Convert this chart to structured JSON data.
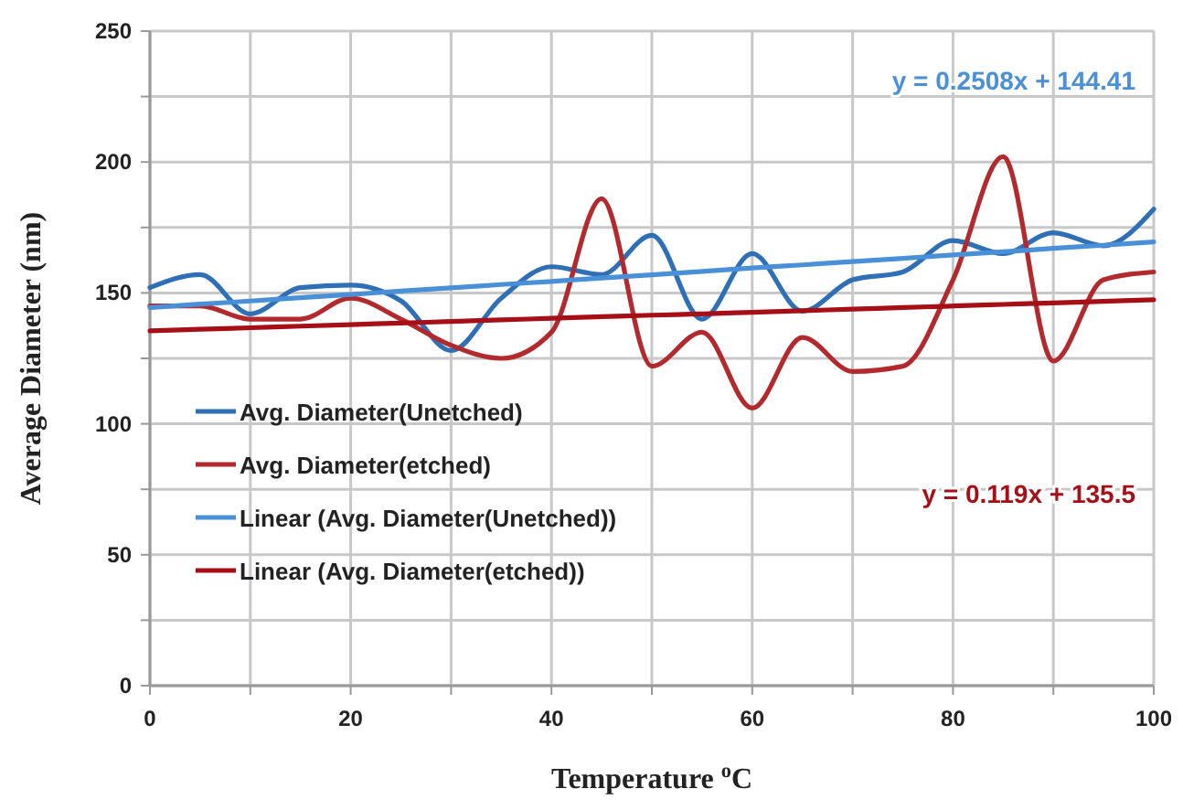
{
  "chart_data": {
    "type": "line",
    "xlabel": "Temperature $^{o}$C",
    "ylabel": "Average Diameter (nm)",
    "x": [
      0,
      5,
      10,
      15,
      20,
      25,
      30,
      35,
      40,
      45,
      50,
      55,
      60,
      65,
      70,
      75,
      80,
      85,
      90,
      95,
      100
    ],
    "xlim": [
      0,
      100
    ],
    "xticks": [
      0,
      {
        "value": 10,
        "label": null
      },
      20,
      {
        "value": 30,
        "label": null
      },
      40,
      {
        "value": 50,
        "label": null
      },
      60,
      {
        "value": 70,
        "label": null
      },
      80,
      {
        "value": 90,
        "label": null
      },
      100
    ],
    "ylim": [
      0,
      250
    ],
    "yticks": [
      0,
      {
        "value": 25,
        "label": null
      },
      50,
      {
        "value": 75,
        "label": null
      },
      100,
      {
        "value": 125,
        "label": null
      },
      150,
      {
        "value": 175,
        "label": null
      },
      200,
      {
        "value": 225,
        "label": null
      },
      250
    ],
    "grid": true,
    "legend": "bottom left",
    "marker": "none",
    "line_style": "solid",
    "series": [
      {
        "name": "Avg. Diameter(Unetched)",
        "color": "#2e6fb5",
        "values": [
          152,
          157,
          142,
          152,
          153,
          147,
          128,
          148,
          160,
          157,
          172,
          140,
          165,
          143,
          155,
          158,
          170,
          165,
          173,
          168,
          182
        ]
      },
      {
        "name": "Avg. Diameter(etched)",
        "color": "#b22a2e",
        "values": [
          145,
          145,
          140,
          140,
          148,
          140,
          130,
          125,
          135,
          186,
          122,
          135,
          106,
          133,
          120,
          122,
          155,
          202,
          124,
          155,
          158
        ]
      },
      {
        "name": "Linear (Avg. Diameter(Unetched))",
        "color": "#4a90d9",
        "values": [
          144.4,
          145.7,
          146.9,
          148.2,
          149.4,
          150.7,
          151.9,
          153.2,
          154.4,
          155.7,
          156.9,
          158.2,
          159.5,
          160.7,
          162.0,
          163.2,
          164.5,
          165.7,
          167.0,
          168.2,
          169.5
        ]
      },
      {
        "name": "Linear (Avg. Diameter(etched))",
        "color": "#a50f15",
        "values": [
          135.5,
          136.1,
          136.7,
          137.3,
          137.9,
          138.5,
          139.1,
          139.7,
          140.3,
          140.9,
          141.5,
          142.0,
          142.6,
          143.2,
          143.8,
          144.4,
          145.0,
          145.6,
          146.2,
          146.8,
          147.4
        ]
      }
    ],
    "annotations": [
      "y = 0.2508x + 144.41",
      "y = 0.119x + 135.5"
    ]
  }
}
